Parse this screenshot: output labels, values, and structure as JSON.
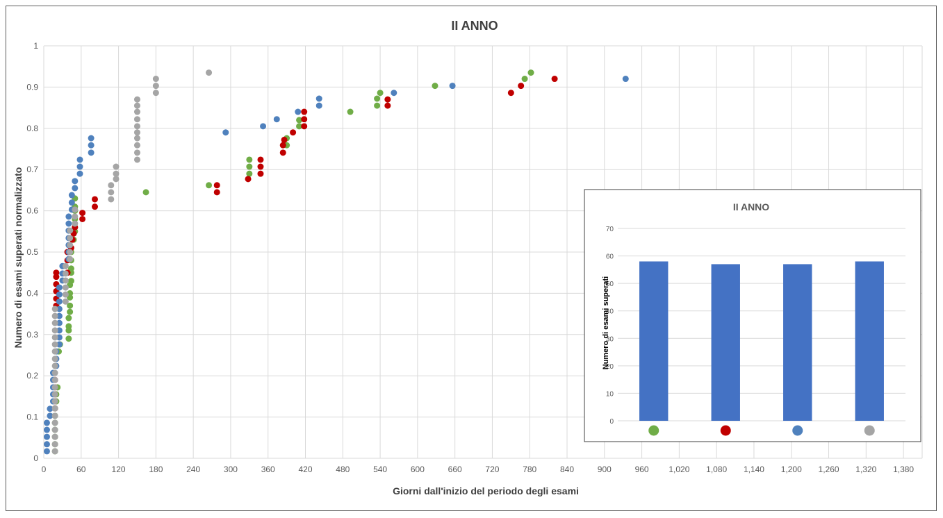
{
  "chart_data": [
    {
      "type": "scatter",
      "title": "II ANNO",
      "xlabel": "Giorni dall'inizio del periodo degli esami",
      "ylabel": "Numero di esami superati normalizzato",
      "xlim": [
        0,
        1410
      ],
      "ylim": [
        0,
        1
      ],
      "x_ticks": [
        "0",
        "60",
        "120",
        "180",
        "240",
        "300",
        "360",
        "420",
        "480",
        "540",
        "600",
        "660",
        "720",
        "780",
        "840",
        "900",
        "960",
        "1,020",
        "1,080",
        "1,140",
        "1,200",
        "1,260",
        "1,320",
        "1,380"
      ],
      "y_ticks": [
        "0",
        "0.1",
        "0.2",
        "0.3",
        "0.4",
        "0.5",
        "0.6",
        "0.7",
        "0.8",
        "0.9",
        "1"
      ],
      "grid": true,
      "series": [
        {
          "color": "#70AD47",
          "points": [
            [
              18,
              0.017
            ],
            [
              18,
              0.034
            ],
            [
              18,
              0.052
            ],
            [
              18,
              0.069
            ],
            [
              18,
              0.086
            ],
            [
              18,
              0.103
            ],
            [
              18,
              0.121
            ],
            [
              20,
              0.138
            ],
            [
              20,
              0.155
            ],
            [
              22,
              0.172
            ],
            [
              24,
              0.259
            ],
            [
              26,
              0.276
            ],
            [
              40,
              0.29
            ],
            [
              40,
              0.31
            ],
            [
              40,
              0.32
            ],
            [
              40,
              0.34
            ],
            [
              42,
              0.355
            ],
            [
              42,
              0.37
            ],
            [
              42,
              0.39
            ],
            [
              42,
              0.4
            ],
            [
              42,
              0.42
            ],
            [
              44,
              0.43
            ],
            [
              44,
              0.45
            ],
            [
              44,
              0.46
            ],
            [
              44,
              0.48
            ],
            [
              44,
              0.5
            ],
            [
              48,
              0.53
            ],
            [
              50,
              0.55
            ],
            [
              50,
              0.56
            ],
            [
              50,
              0.58
            ],
            [
              50,
              0.6
            ],
            [
              50,
              0.61
            ],
            [
              50,
              0.63
            ],
            [
              164,
              0.645
            ],
            [
              265,
              0.662
            ],
            [
              330,
              0.69
            ],
            [
              330,
              0.707
            ],
            [
              330,
              0.724
            ],
            [
              390,
              0.759
            ],
            [
              390,
              0.776
            ],
            [
              410,
              0.805
            ],
            [
              410,
              0.82
            ],
            [
              492,
              0.84
            ],
            [
              535,
              0.855
            ],
            [
              535,
              0.872
            ],
            [
              540,
              0.886
            ],
            [
              628,
              0.903
            ],
            [
              772,
              0.92
            ],
            [
              782,
              0.935
            ]
          ]
        },
        {
          "color": "#C00000",
          "points": [
            [
              18,
              0.121
            ],
            [
              18,
              0.138
            ],
            [
              18,
              0.155
            ],
            [
              18,
              0.172
            ],
            [
              18,
              0.19
            ],
            [
              20,
              0.37
            ],
            [
              20,
              0.387
            ],
            [
              20,
              0.405
            ],
            [
              20,
              0.422
            ],
            [
              20,
              0.44
            ],
            [
              20,
              0.45
            ],
            [
              38,
              0.45
            ],
            [
              38,
              0.48
            ],
            [
              38,
              0.5
            ],
            [
              44,
              0.51
            ],
            [
              46,
              0.53
            ],
            [
              48,
              0.545
            ],
            [
              50,
              0.56
            ],
            [
              62,
              0.58
            ],
            [
              62,
              0.595
            ],
            [
              82,
              0.61
            ],
            [
              82,
              0.628
            ],
            [
              278,
              0.645
            ],
            [
              278,
              0.662
            ],
            [
              328,
              0.677
            ],
            [
              348,
              0.69
            ],
            [
              348,
              0.707
            ],
            [
              348,
              0.724
            ],
            [
              384,
              0.741
            ],
            [
              384,
              0.759
            ],
            [
              386,
              0.772
            ],
            [
              400,
              0.79
            ],
            [
              418,
              0.805
            ],
            [
              418,
              0.822
            ],
            [
              418,
              0.84
            ],
            [
              552,
              0.855
            ],
            [
              552,
              0.87
            ],
            [
              750,
              0.886
            ],
            [
              766,
              0.903
            ],
            [
              820,
              0.92
            ]
          ]
        },
        {
          "color": "#4F81BD",
          "points": [
            [
              5,
              0.017
            ],
            [
              5,
              0.034
            ],
            [
              5,
              0.052
            ],
            [
              5,
              0.069
            ],
            [
              5,
              0.086
            ],
            [
              10,
              0.103
            ],
            [
              10,
              0.12
            ],
            [
              15,
              0.138
            ],
            [
              15,
              0.155
            ],
            [
              15,
              0.172
            ],
            [
              15,
              0.19
            ],
            [
              15,
              0.207
            ],
            [
              20,
              0.224
            ],
            [
              20,
              0.241
            ],
            [
              20,
              0.259
            ],
            [
              25,
              0.276
            ],
            [
              25,
              0.293
            ],
            [
              25,
              0.31
            ],
            [
              25,
              0.328
            ],
            [
              25,
              0.345
            ],
            [
              25,
              0.362
            ],
            [
              25,
              0.38
            ],
            [
              25,
              0.397
            ],
            [
              25,
              0.414
            ],
            [
              30,
              0.431
            ],
            [
              30,
              0.448
            ],
            [
              30,
              0.466
            ],
            [
              40,
              0.483
            ],
            [
              40,
              0.5
            ],
            [
              40,
              0.517
            ],
            [
              40,
              0.534
            ],
            [
              40,
              0.552
            ],
            [
              40,
              0.569
            ],
            [
              40,
              0.586
            ],
            [
              45,
              0.603
            ],
            [
              45,
              0.62
            ],
            [
              45,
              0.638
            ],
            [
              50,
              0.655
            ],
            [
              50,
              0.672
            ],
            [
              58,
              0.69
            ],
            [
              58,
              0.707
            ],
            [
              58,
              0.724
            ],
            [
              76,
              0.741
            ],
            [
              76,
              0.759
            ],
            [
              76,
              0.776
            ],
            [
              292,
              0.79
            ],
            [
              352,
              0.805
            ],
            [
              374,
              0.822
            ],
            [
              408,
              0.84
            ],
            [
              442,
              0.855
            ],
            [
              442,
              0.872
            ],
            [
              562,
              0.886
            ],
            [
              656,
              0.903
            ],
            [
              934,
              0.92
            ]
          ]
        },
        {
          "color": "#A5A5A5",
          "points": [
            [
              18,
              0.017
            ],
            [
              18,
              0.034
            ],
            [
              18,
              0.052
            ],
            [
              18,
              0.069
            ],
            [
              18,
              0.086
            ],
            [
              18,
              0.103
            ],
            [
              18,
              0.121
            ],
            [
              18,
              0.138
            ],
            [
              18,
              0.155
            ],
            [
              18,
              0.172
            ],
            [
              18,
              0.19
            ],
            [
              18,
              0.207
            ],
            [
              18,
              0.224
            ],
            [
              18,
              0.241
            ],
            [
              18,
              0.259
            ],
            [
              18,
              0.276
            ],
            [
              18,
              0.293
            ],
            [
              18,
              0.31
            ],
            [
              18,
              0.328
            ],
            [
              18,
              0.345
            ],
            [
              18,
              0.362
            ],
            [
              35,
              0.38
            ],
            [
              35,
              0.397
            ],
            [
              35,
              0.414
            ],
            [
              35,
              0.431
            ],
            [
              35,
              0.448
            ],
            [
              35,
              0.466
            ],
            [
              42,
              0.483
            ],
            [
              42,
              0.5
            ],
            [
              42,
              0.517
            ],
            [
              42,
              0.534
            ],
            [
              42,
              0.552
            ],
            [
              50,
              0.569
            ],
            [
              50,
              0.586
            ],
            [
              50,
              0.603
            ],
            [
              108,
              0.628
            ],
            [
              108,
              0.645
            ],
            [
              108,
              0.662
            ],
            [
              116,
              0.677
            ],
            [
              116,
              0.69
            ],
            [
              116,
              0.707
            ],
            [
              150,
              0.724
            ],
            [
              150,
              0.741
            ],
            [
              150,
              0.759
            ],
            [
              150,
              0.776
            ],
            [
              150,
              0.79
            ],
            [
              150,
              0.805
            ],
            [
              150,
              0.822
            ],
            [
              150,
              0.84
            ],
            [
              150,
              0.855
            ],
            [
              150,
              0.87
            ],
            [
              180,
              0.886
            ],
            [
              180,
              0.903
            ],
            [
              180,
              0.92
            ],
            [
              265,
              0.935
            ]
          ]
        }
      ]
    },
    {
      "type": "bar",
      "title": "II ANNO",
      "ylabel": "Numero di esami superati",
      "ylim": [
        0,
        70
      ],
      "y_ticks": [
        "0",
        "10",
        "20",
        "30",
        "40",
        "50",
        "60",
        "70"
      ],
      "grid": true,
      "categories": [
        "green",
        "red",
        "blue",
        "gray"
      ],
      "category_colors": [
        "#70AD47",
        "#C00000",
        "#4F81BD",
        "#A5A5A5"
      ],
      "values": [
        58,
        57,
        57,
        58
      ],
      "bar_color": "#4472C4"
    }
  ]
}
